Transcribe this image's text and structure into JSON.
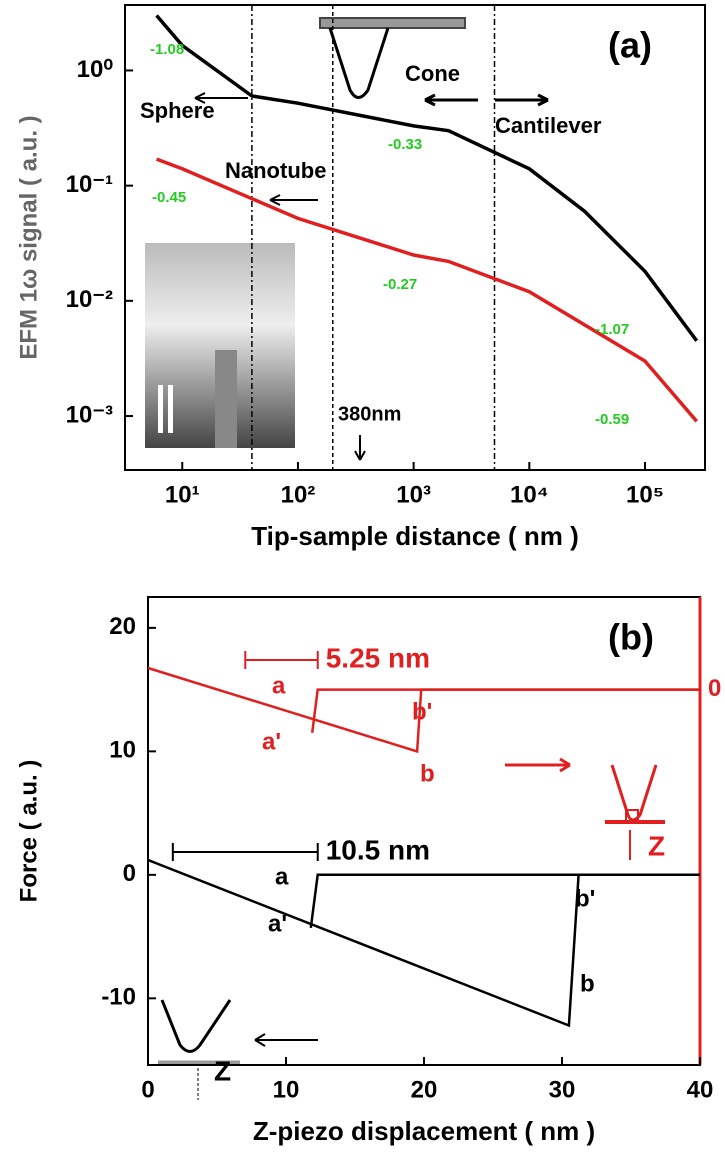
{
  "chart_data": [
    {
      "type": "line",
      "xlabel": "Tip-sample distance ( nm )",
      "ylabel": "EFM 1ω signal ( a.u. )",
      "xlog": true,
      "ylog": true,
      "xlim": [
        3.2,
        330000
      ],
      "ylim": [
        0.00034,
        3.7
      ],
      "xticks": [
        {
          "value": 10,
          "label": "10¹"
        },
        {
          "value": 100,
          "label": "10²"
        },
        {
          "value": 1000,
          "label": "10³"
        },
        {
          "value": 10000,
          "label": "10⁴"
        },
        {
          "value": 100000,
          "label": "10⁵"
        }
      ],
      "yticks": [
        {
          "value": 1,
          "label": "10⁰"
        },
        {
          "value": 0.1,
          "label": "10⁻¹"
        },
        {
          "value": 0.01,
          "label": "10⁻²"
        },
        {
          "value": 0.001,
          "label": "10⁻³"
        }
      ],
      "series": [
        {
          "color": "#000000",
          "x": [
            6,
            10,
            40,
            100,
            1000,
            2000,
            10000,
            30000,
            100000,
            280000
          ],
          "values": [
            3,
            1.65,
            0.6,
            0.52,
            0.33,
            0.3,
            0.14,
            0.06,
            0.018,
            0.0045
          ]
        },
        {
          "color": "#e02020",
          "x": [
            6,
            10,
            100,
            1000,
            2000,
            10000,
            100000,
            280000
          ],
          "values": [
            0.17,
            0.14,
            0.052,
            0.025,
            0.022,
            0.012,
            0.003,
            0.0009
          ]
        }
      ],
      "vlines": [
        40,
        200,
        5000
      ],
      "panel_label": "(a)",
      "annotations": [
        {
          "text": "-1.08",
          "color": "#22cc22"
        },
        {
          "text": "Sphere",
          "color": "#000000"
        },
        {
          "text": "Cone",
          "color": "#000000"
        },
        {
          "text": "Cantilever",
          "color": "#000000"
        },
        {
          "text": "-0.33",
          "color": "#22cc22"
        },
        {
          "text": "Nanotube",
          "color": "#000000"
        },
        {
          "text": "-0.45",
          "color": "#22cc22"
        },
        {
          "text": "-0.27",
          "color": "#22cc22"
        },
        {
          "text": "-1.07",
          "color": "#22cc22"
        },
        {
          "text": "-0.59",
          "color": "#22cc22"
        },
        {
          "text": "380nm",
          "color": "#000000"
        }
      ]
    },
    {
      "type": "line",
      "xlabel": "Z-piezo displacement ( nm )",
      "ylabel": "Force ( a.u. )",
      "xlim": [
        0,
        40
      ],
      "ylim": [
        -15.4,
        22.5
      ],
      "y2lim": [
        -30.4,
        7.5
      ],
      "xticks": [
        0,
        10,
        20,
        30,
        40
      ],
      "yticks": [
        -10,
        0,
        10,
        20
      ],
      "y2ticks": [
        0
      ],
      "y2color": "#e02020",
      "series": [
        {
          "color": "#000000",
          "x": [
            0,
            30.5,
            31.2,
            40
          ],
          "values": [
            1.2,
            -12.2,
            0,
            0
          ]
        },
        {
          "color": "#000000",
          "x": [
            11.8,
            12.3,
            40
          ],
          "values": [
            -4.3,
            0,
            0
          ]
        },
        {
          "color": "#e02020",
          "axis": "y2",
          "x": [
            0,
            19.5,
            19.8,
            40
          ],
          "values": [
            1.75,
            -5,
            0,
            0
          ]
        },
        {
          "color": "#e02020",
          "axis": "y2",
          "x": [
            11.9,
            12.3,
            40
          ],
          "values": [
            -3.5,
            0,
            0
          ]
        }
      ],
      "brackets": [
        {
          "label": "5.25 nm",
          "color": "#e02020",
          "x": [
            7.05,
            12.3
          ]
        },
        {
          "label": "10.5 nm",
          "color": "#000000",
          "x": [
            1.8,
            12.3
          ]
        }
      ],
      "panel_label": "(b)",
      "annotations": [
        {
          "text": "a",
          "color": "#e02020"
        },
        {
          "text": "a'",
          "color": "#e02020"
        },
        {
          "text": "b'",
          "color": "#e02020"
        },
        {
          "text": "b",
          "color": "#e02020"
        },
        {
          "text": "Z",
          "color": "#e02020"
        },
        {
          "text": "a",
          "color": "#000000"
        },
        {
          "text": "a'",
          "color": "#000000"
        },
        {
          "text": "b'",
          "color": "#000000"
        },
        {
          "text": "b",
          "color": "#000000"
        },
        {
          "text": "Z",
          "color": "#000000"
        }
      ]
    }
  ]
}
